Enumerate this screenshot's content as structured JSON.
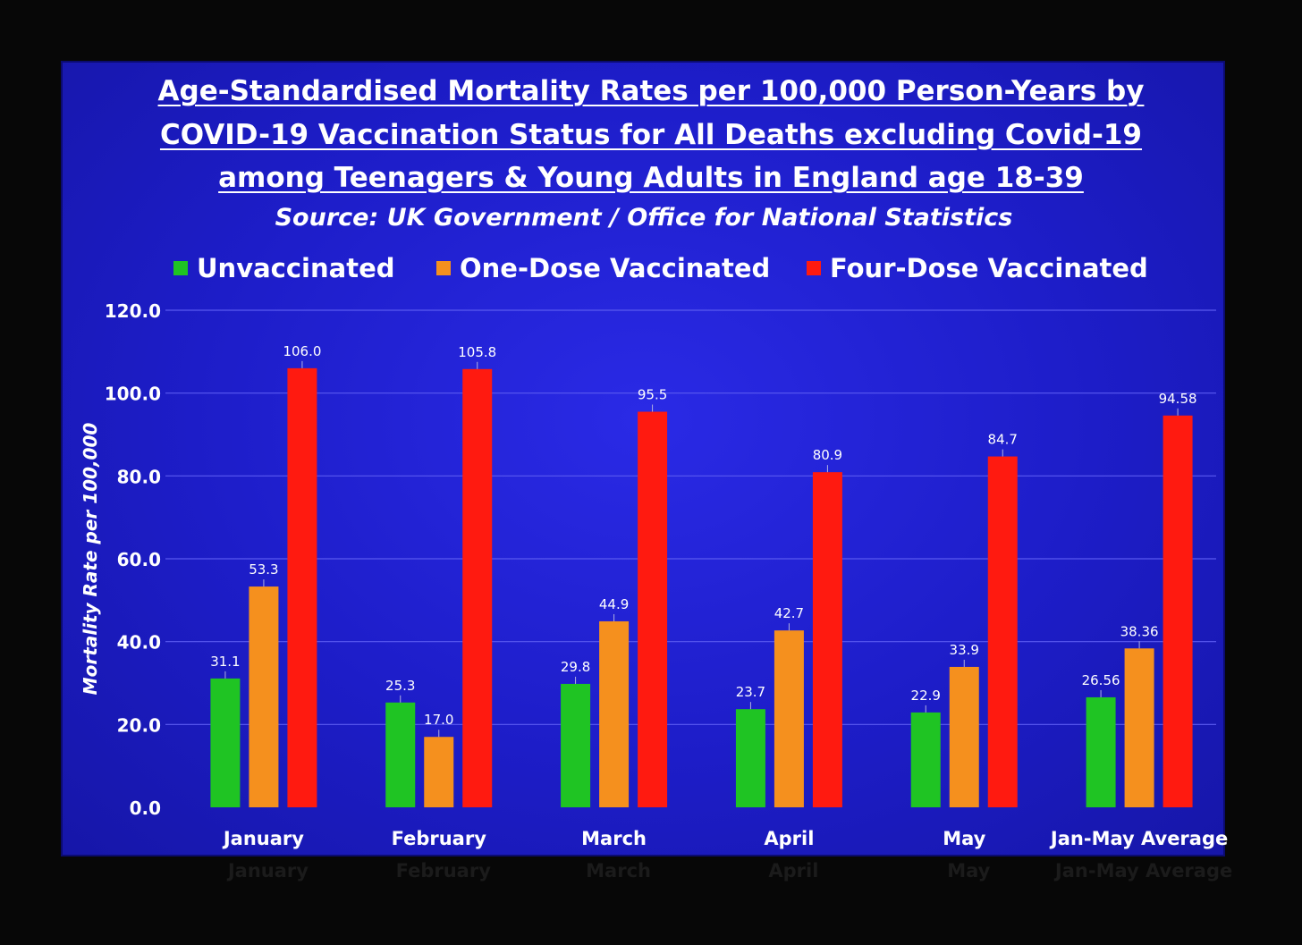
{
  "title_lines": [
    "Age-Standardised Mortality Rates per 100,000 Person-Years by",
    "COVID-19 Vaccination Status for All Deaths excluding Covid-19",
    "among Teenagers & Young Adults in England age 18-39"
  ],
  "subtitle": "Source: UK Government / Office for National Statistics",
  "colors": {
    "background": "#1f1fd0",
    "gridline": "#5a5af0",
    "text": "#ffffff",
    "unvaccinated": "#1fc423",
    "one_dose": "#f5901e",
    "four_dose": "#ff1a10"
  },
  "chart_data": {
    "type": "bar",
    "title": "Age-Standardised Mortality Rates per 100,000 Person-Years by COVID-19 Vaccination Status for All Deaths excluding Covid-19 among Teenagers & Young Adults in England age 18-39",
    "subtitle": "Source: UK Government / Office for National Statistics",
    "xlabel": "",
    "ylabel": "Mortality Rate per 100,000",
    "ylim": [
      0,
      120
    ],
    "yticks": [
      "0.0",
      "20.0",
      "40.0",
      "60.0",
      "80.0",
      "100.0",
      "120.0"
    ],
    "grid": true,
    "legend_position": "top",
    "categories": [
      "January",
      "February",
      "March",
      "April",
      "May",
      "Jan-May Average"
    ],
    "series": [
      {
        "name": "Unvaccinated",
        "color": "#1fc423",
        "values": [
          31.1,
          25.3,
          29.8,
          23.7,
          22.9,
          26.56
        ],
        "labels": [
          "31.1",
          "25.3",
          "29.8",
          "23.7",
          "22.9",
          "26.56"
        ]
      },
      {
        "name": "One-Dose Vaccinated",
        "color": "#f5901e",
        "values": [
          53.3,
          17.0,
          44.9,
          42.7,
          33.9,
          38.36
        ],
        "labels": [
          "53.3",
          "17.0",
          "44.9",
          "42.7",
          "33.9",
          "38.36"
        ]
      },
      {
        "name": "Four-Dose Vaccinated",
        "color": "#ff1a10",
        "values": [
          106.0,
          105.8,
          95.5,
          80.9,
          84.7,
          94.58
        ],
        "labels": [
          "106.0",
          "105.8",
          "95.5",
          "80.9",
          "84.7",
          "94.58"
        ]
      }
    ]
  }
}
